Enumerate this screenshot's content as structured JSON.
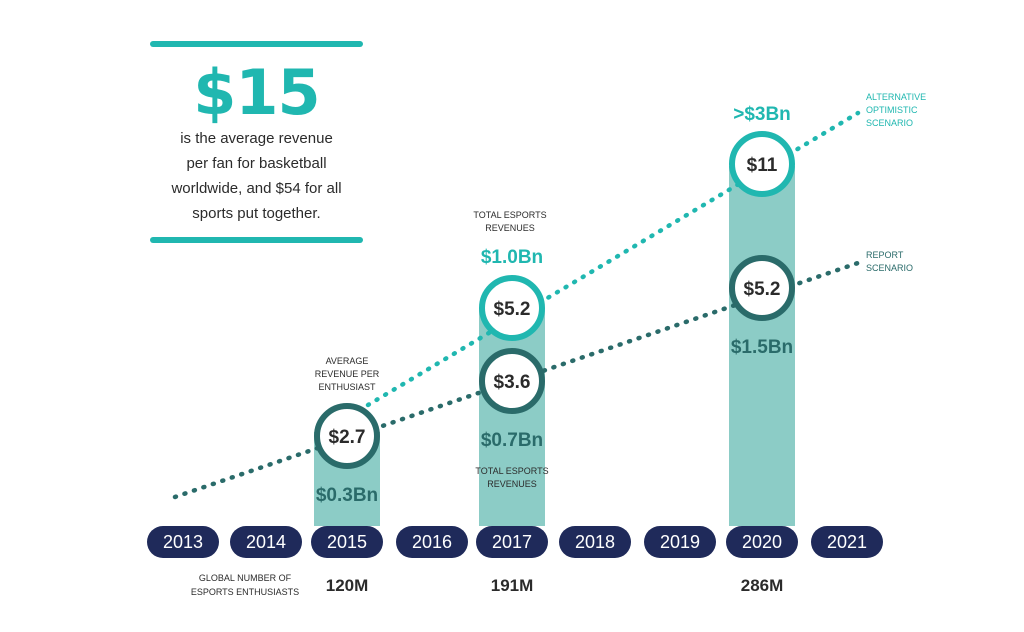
{
  "callout": {
    "headline": "$15",
    "lines": [
      "is the average revenue",
      "per fan for basketball",
      "worldwide, and $54 for all",
      "sports put together."
    ]
  },
  "chart_data": {
    "type": "bar",
    "categories": [
      "2013",
      "2014",
      "2015",
      "2016",
      "2017",
      "2018",
      "2019",
      "2020",
      "2021"
    ],
    "bars": [
      {
        "year": "2015",
        "label": "$0.3Bn"
      },
      {
        "year": "2017",
        "label": "$0.7Bn"
      },
      {
        "year": "2020",
        "label": "$1.5Bn"
      }
    ],
    "series": [
      {
        "name": "REPORT SCENARIO",
        "values": [
          {
            "year": "2015",
            "arpe": "$2.7"
          },
          {
            "year": "2017",
            "arpe": "$3.6"
          },
          {
            "year": "2020",
            "arpe": "$5.2"
          }
        ]
      },
      {
        "name": "ALTERNATIVE OPTIMISTIC SCENARIO",
        "values": [
          {
            "year": "2017",
            "arpe": "$5.2",
            "revenue": "$1.0Bn"
          },
          {
            "year": "2020",
            "arpe": "$11",
            "revenue": ">$3Bn"
          }
        ]
      }
    ],
    "annotations": {
      "arpe_label": [
        "AVERAGE",
        "REVENUE PER",
        "ENTHUSIAST"
      ],
      "total_rev_top": [
        "TOTAL ESPORTS",
        "REVENUES"
      ],
      "total_rev_bottom": [
        "TOTAL ESPORTS",
        "REVENUES"
      ],
      "legend_alt": [
        "ALTERNATIVE",
        "OPTIMISTIC",
        "SCENARIO"
      ],
      "legend_report": [
        "REPORT",
        "SCENARIO"
      ]
    },
    "enthusiasts": {
      "label": [
        "GLOBAL NUMBER OF",
        "ESPORTS ENTHUSIASTS"
      ],
      "values": [
        {
          "year": "2015",
          "value": "120M"
        },
        {
          "year": "2017",
          "value": "191M"
        },
        {
          "year": "2020",
          "value": "286M"
        }
      ]
    }
  },
  "colors": {
    "teal": "#20b7b0",
    "bar": "#8cccc6",
    "dark_teal": "#2a6b6a",
    "navy": "#1f2a5a",
    "dark_text": "#2b2b2b"
  }
}
